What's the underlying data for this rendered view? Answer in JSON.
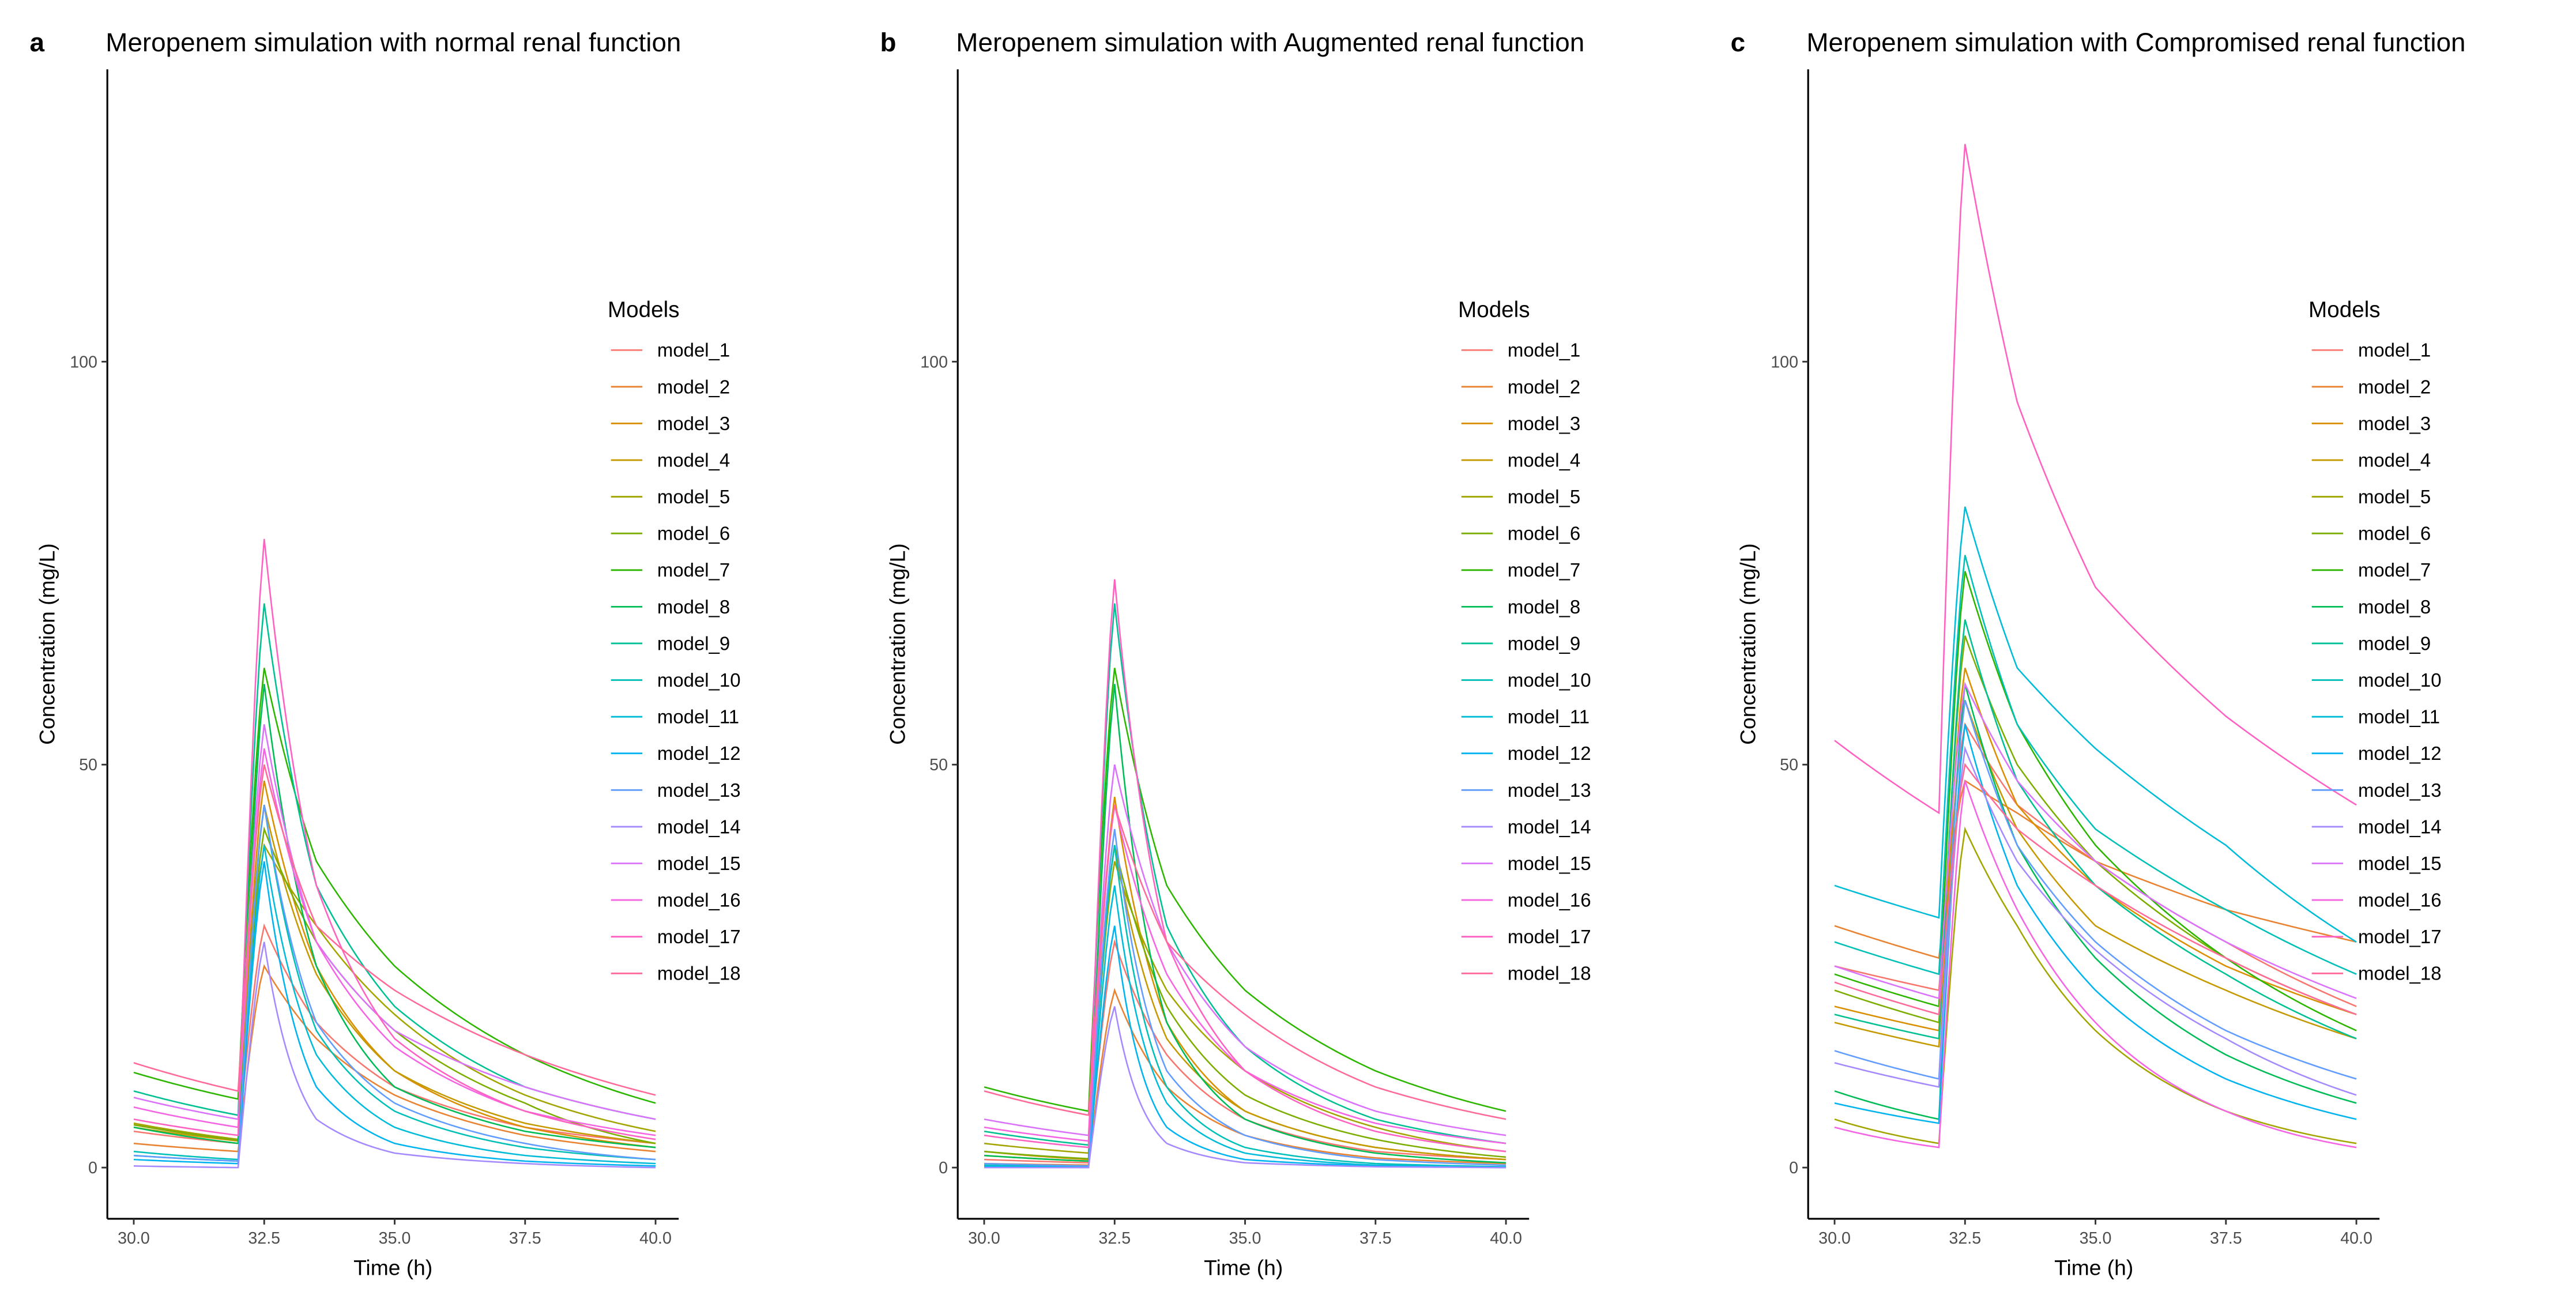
{
  "models": [
    "model_1",
    "model_2",
    "model_3",
    "model_4",
    "model_5",
    "model_6",
    "model_7",
    "model_8",
    "model_9",
    "model_10",
    "model_11",
    "model_12",
    "model_13",
    "model_14",
    "model_15",
    "model_16",
    "model_17",
    "model_18"
  ],
  "colors": [
    "#F8766D",
    "#EA8331",
    "#DA8F00",
    "#C59900",
    "#A3A500",
    "#7CAE00",
    "#2DB600",
    "#00BC56",
    "#00C094",
    "#00C0B8",
    "#00BCD8",
    "#00B4F0",
    "#619CFF",
    "#A58AFF",
    "#DB72FB",
    "#F564E3",
    "#FF61C3",
    "#FF6A98"
  ],
  "chart_data": [
    {
      "type": "line",
      "panel_letter": "a",
      "title": "Meropenem simulation with normal renal function",
      "xlabel": "Time (h)",
      "ylabel": "Concentration (mg/L)",
      "xlim": [
        29.5,
        40.5
      ],
      "ylim": [
        -6,
        136
      ],
      "xticks": [
        "30.0",
        "32.5",
        "35.0",
        "37.5",
        "40.0"
      ],
      "yticks": [
        "0",
        "50",
        "100"
      ],
      "legend_title": "Models",
      "legend_position": "right",
      "grid": false,
      "x": [
        30,
        32,
        32.5,
        33.5,
        35,
        37.5,
        40
      ],
      "series": [
        {
          "name": "model_1",
          "values": [
            4.5,
            3,
            30,
            18,
            10,
            5,
            3
          ]
        },
        {
          "name": "model_2",
          "values": [
            3,
            2,
            25,
            16,
            9,
            4,
            2
          ]
        },
        {
          "name": "model_3",
          "values": [
            5.5,
            3.5,
            48,
            25,
            12,
            5,
            2.5
          ]
        },
        {
          "name": "model_4",
          "values": [
            5,
            3.3,
            45,
            24,
            12,
            5.5,
            3
          ]
        },
        {
          "name": "model_5",
          "values": [
            5.5,
            3.5,
            40,
            30,
            19,
            9,
            4.5
          ]
        },
        {
          "name": "model_6",
          "values": [
            5.3,
            3.4,
            42,
            28,
            17,
            8,
            3
          ]
        },
        {
          "name": "model_7",
          "values": [
            11.8,
            8.5,
            62,
            38,
            25,
            14,
            8
          ]
        },
        {
          "name": "model_8",
          "values": [
            5,
            3,
            60,
            25,
            10,
            4.5,
            2.5
          ]
        },
        {
          "name": "model_9",
          "values": [
            9.5,
            6.5,
            70,
            35,
            20,
            10,
            6
          ]
        },
        {
          "name": "model_10",
          "values": [
            2,
            1,
            45,
            17,
            7,
            2.5,
            1
          ]
        },
        {
          "name": "model_11",
          "values": [
            1.5,
            0.8,
            40,
            14,
            5,
            1.5,
            0.5
          ]
        },
        {
          "name": "model_12",
          "values": [
            1,
            0.5,
            38,
            10,
            3,
            0.8,
            0.2
          ]
        },
        {
          "name": "model_13",
          "values": [
            1.5,
            0.8,
            45,
            18,
            8,
            3,
            1
          ]
        },
        {
          "name": "model_14",
          "values": [
            0.2,
            0,
            28,
            6,
            1.8,
            0.5,
            0
          ]
        },
        {
          "name": "model_15",
          "values": [
            8.7,
            6,
            55,
            28,
            17,
            10,
            6
          ]
        },
        {
          "name": "model_16",
          "values": [
            7.5,
            5,
            52,
            28,
            15,
            7,
            4
          ]
        },
        {
          "name": "model_17",
          "values": [
            6,
            4,
            78,
            35,
            16,
            7,
            3.5
          ]
        },
        {
          "name": "model_18",
          "values": [
            13,
            9.5,
            50,
            30,
            22,
            14,
            9
          ]
        }
      ]
    },
    {
      "type": "line",
      "panel_letter": "b",
      "title": "Meropenem simulation with Augmented renal function",
      "xlabel": "Time (h)",
      "ylabel": "Concentration (mg/L)",
      "xlim": [
        29.5,
        40.5
      ],
      "ylim": [
        -6,
        136
      ],
      "xticks": [
        "30.0",
        "32.5",
        "35.0",
        "37.5",
        "40.0"
      ],
      "yticks": [
        "0",
        "50",
        "100"
      ],
      "legend_title": "Models",
      "legend_position": "right",
      "grid": false,
      "x": [
        30,
        32,
        32.5,
        33.5,
        35,
        37.5,
        40
      ],
      "series": [
        {
          "name": "model_1",
          "values": [
            1,
            0.6,
            28,
            14,
            6,
            2,
            1
          ]
        },
        {
          "name": "model_2",
          "values": [
            0.5,
            0.3,
            22,
            10,
            4,
            1.2,
            0.5
          ]
        },
        {
          "name": "model_3",
          "values": [
            2,
            1,
            46,
            18,
            7,
            2.5,
            1
          ]
        },
        {
          "name": "model_4",
          "values": [
            1.5,
            0.8,
            40,
            16,
            7,
            2.5,
            1
          ]
        },
        {
          "name": "model_5",
          "values": [
            3,
            1.8,
            38,
            22,
            12,
            5,
            2
          ]
        },
        {
          "name": "model_6",
          "values": [
            2,
            1.1,
            40,
            20,
            9,
            3.5,
            1.3
          ]
        },
        {
          "name": "model_7",
          "values": [
            10,
            7,
            62,
            35,
            22,
            12,
            7
          ]
        },
        {
          "name": "model_8",
          "values": [
            1.5,
            0.8,
            60,
            18,
            6,
            1.8,
            0.6
          ]
        },
        {
          "name": "model_9",
          "values": [
            4.5,
            2.8,
            70,
            30,
            15,
            6,
            3
          ]
        },
        {
          "name": "model_10",
          "values": [
            0.3,
            0.1,
            40,
            10,
            2.5,
            0.5,
            0.1
          ]
        },
        {
          "name": "model_11",
          "values": [
            0.2,
            0.1,
            35,
            8,
            1.8,
            0.3,
            0.1
          ]
        },
        {
          "name": "model_12",
          "values": [
            0.1,
            0,
            30,
            5,
            1,
            0.2,
            0
          ]
        },
        {
          "name": "model_13",
          "values": [
            0.5,
            0.2,
            42,
            12,
            4,
            1,
            0.3
          ]
        },
        {
          "name": "model_14",
          "values": [
            0,
            0,
            20,
            3,
            0.6,
            0.1,
            0
          ]
        },
        {
          "name": "model_15",
          "values": [
            6,
            4,
            50,
            28,
            15,
            7,
            4
          ]
        },
        {
          "name": "model_16",
          "values": [
            5,
            3.3,
            45,
            24,
            12,
            5.5,
            3
          ]
        },
        {
          "name": "model_17",
          "values": [
            4,
            2.5,
            73,
            28,
            12,
            4.5,
            2
          ]
        },
        {
          "name": "model_18",
          "values": [
            9.5,
            6.5,
            45,
            28,
            19,
            10,
            6
          ]
        }
      ]
    },
    {
      "type": "line",
      "panel_letter": "c",
      "title": "Meropenem simulation with Compromised renal function",
      "xlabel": "Time (h)",
      "ylabel": "Concentration (mg/L)",
      "xlim": [
        29.5,
        40.5
      ],
      "ylim": [
        -6,
        136
      ],
      "xticks": [
        "30.0",
        "32.5",
        "35.0",
        "37.5",
        "40.0"
      ],
      "yticks": [
        "0",
        "50",
        "100"
      ],
      "legend_title": "Models",
      "legend_position": "right",
      "grid": false,
      "x": [
        30,
        32,
        32.5,
        33.5,
        35,
        37.5,
        40
      ],
      "series": [
        {
          "name": "model_1",
          "values": [
            25,
            22,
            55,
            45,
            38,
            28,
            20
          ]
        },
        {
          "name": "model_2",
          "values": [
            30,
            26,
            48,
            44,
            38,
            32,
            28
          ]
        },
        {
          "name": "model_3",
          "values": [
            20,
            17,
            62,
            45,
            35,
            25,
            19
          ]
        },
        {
          "name": "model_4",
          "values": [
            18,
            15,
            58,
            42,
            30,
            22,
            16
          ]
        },
        {
          "name": "model_5",
          "values": [
            6,
            3,
            42,
            30,
            17,
            7,
            3
          ]
        },
        {
          "name": "model_6",
          "values": [
            22,
            18,
            66,
            50,
            38,
            26,
            19
          ]
        },
        {
          "name": "model_7",
          "values": [
            24,
            20,
            74,
            55,
            40,
            26,
            17
          ]
        },
        {
          "name": "model_8",
          "values": [
            9.5,
            6,
            60,
            40,
            26,
            14,
            8
          ]
        },
        {
          "name": "model_9",
          "values": [
            19,
            16,
            68,
            48,
            35,
            24,
            16
          ]
        },
        {
          "name": "model_10",
          "values": [
            28,
            24,
            76,
            55,
            42,
            32,
            24
          ]
        },
        {
          "name": "model_11",
          "values": [
            35,
            31,
            82,
            62,
            52,
            40,
            28
          ]
        },
        {
          "name": "model_12",
          "values": [
            8,
            5.5,
            55,
            35,
            22,
            11,
            6
          ]
        },
        {
          "name": "model_13",
          "values": [
            14.5,
            11,
            58,
            40,
            28,
            17,
            11
          ]
        },
        {
          "name": "model_14",
          "values": [
            13,
            10,
            52,
            38,
            27,
            16,
            9
          ]
        },
        {
          "name": "model_15",
          "values": [
            25,
            21,
            60,
            48,
            38,
            28,
            21
          ]
        },
        {
          "name": "model_16",
          "values": [
            5,
            2.5,
            48,
            32,
            18,
            7,
            2.5
          ]
        },
        {
          "name": "model_17",
          "values": [
            53,
            44,
            127,
            95,
            72,
            56,
            45
          ]
        },
        {
          "name": "model_18",
          "values": [
            23,
            19,
            50,
            42,
            35,
            26,
            19
          ]
        }
      ]
    }
  ]
}
